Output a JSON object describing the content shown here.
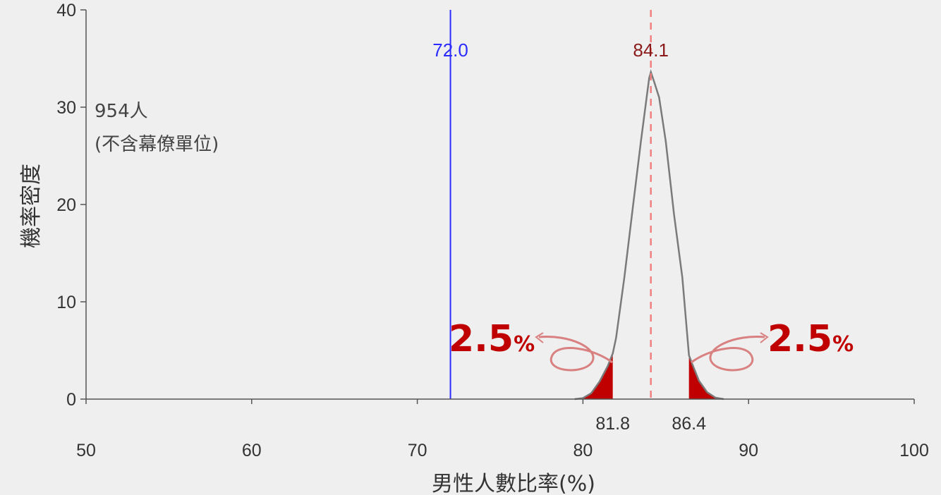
{
  "chart_data": {
    "type": "line",
    "xlabel": "男性人數比率(%)",
    "ylabel": "機率密度",
    "xlim": [
      50,
      100
    ],
    "ylim": [
      0,
      40
    ],
    "x_ticks": [
      50,
      60,
      70,
      80,
      90,
      100
    ],
    "y_ticks": [
      0,
      10,
      20,
      30,
      40
    ],
    "note_lines": [
      "954人",
      "(不含幕僚單位)"
    ],
    "series": [
      {
        "x": [
          79.5,
          80.0,
          80.5,
          81.0,
          81.5,
          81.8,
          82.0,
          82.5,
          83.0,
          83.5,
          84.0,
          84.1,
          84.3,
          84.6,
          85.0,
          85.5,
          86.0,
          86.4,
          86.6,
          87.0,
          87.5,
          88.0,
          88.5
        ],
        "y": [
          0,
          0.1,
          0.6,
          1.8,
          3.4,
          4.7,
          6.3,
          12.5,
          19.5,
          26.5,
          33.0,
          33.6,
          32.6,
          31.0,
          26.5,
          19.0,
          12.5,
          4.5,
          3.6,
          1.9,
          0.7,
          0.15,
          0
        ],
        "color": "#7a7a7a"
      }
    ],
    "observed": {
      "value": 72.0,
      "label": "72.0",
      "color": "#2b2bff"
    },
    "mean": {
      "value": 84.1,
      "label": "84.1",
      "color": "#8b1a1a",
      "line_color": "#f08080"
    },
    "ci": {
      "lower": 81.8,
      "upper": 86.4,
      "lower_label": "81.8",
      "upper_label": "86.4",
      "tail_color": "#c00000",
      "tail_pct_number": "2.5",
      "tail_pct_unit": "%"
    }
  }
}
